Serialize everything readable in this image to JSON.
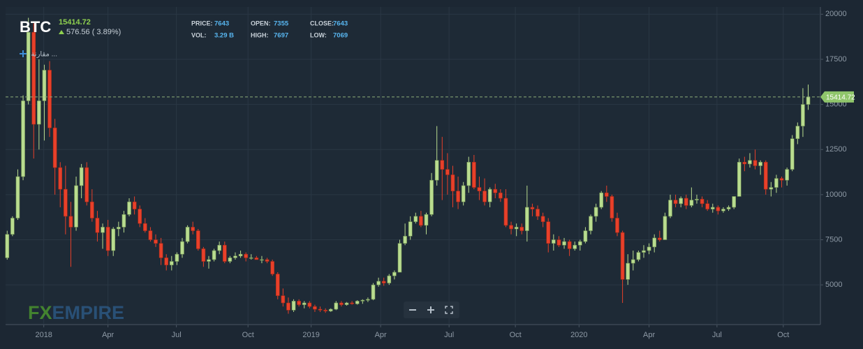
{
  "chart_data": {
    "type": "candlestick",
    "title": "BTC",
    "last_price": 15414.72,
    "change": "576.56 ( 3.89%)",
    "info": [
      {
        "label": "PRICE:",
        "value": 7643
      },
      {
        "label": "OPEN:",
        "value": 7355
      },
      {
        "label": "CLOSE:",
        "value": 7643
      },
      {
        "label": "VOL:",
        "value": "3.29 B"
      },
      {
        "label": "HIGH:",
        "value": 7697
      },
      {
        "label": "LOW:",
        "value": 7069
      }
    ],
    "compare_label": "مقارنة ...",
    "logo": [
      "FX",
      "EMPIRE"
    ],
    "up_color": "#b9dc8f",
    "down_color": "#e8402a",
    "grid": true,
    "ylim": [
      2800,
      20400
    ],
    "yticks": [
      5000,
      7500,
      10000,
      12500,
      15000,
      17500,
      20000
    ],
    "xlim": [
      -0.3,
      153.3
    ],
    "xticks": [
      {
        "value": 6.9,
        "label": "2018"
      },
      {
        "value": 19.0,
        "label": "Apr"
      },
      {
        "value": 31.9,
        "label": "Jul"
      },
      {
        "value": 45.4,
        "label": "Oct"
      },
      {
        "value": 57.3,
        "label": "2019"
      },
      {
        "value": 70.4,
        "label": "Apr"
      },
      {
        "value": 83.3,
        "label": "Jul"
      },
      {
        "value": 95.8,
        "label": "Oct"
      },
      {
        "value": 107.8,
        "label": "2020"
      },
      {
        "value": 121.0,
        "label": "Apr"
      },
      {
        "value": 133.8,
        "label": "Jul"
      },
      {
        "value": 146.3,
        "label": "Oct"
      }
    ],
    "ohlc": [
      [
        6500,
        8000,
        6400,
        7800
      ],
      [
        7800,
        8800,
        7700,
        8700
      ],
      [
        8700,
        11400,
        8600,
        11000
      ],
      [
        11000,
        15500,
        10800,
        15200
      ],
      [
        15200,
        19800,
        15000,
        19000
      ],
      [
        19000,
        19500,
        12000,
        13900
      ],
      [
        13900,
        17500,
        12500,
        15200
      ],
      [
        15200,
        17200,
        13000,
        16900
      ],
      [
        16900,
        17400,
        13200,
        13700
      ],
      [
        13700,
        14200,
        10000,
        11500
      ],
      [
        11500,
        11800,
        9300,
        10300
      ],
      [
        10300,
        11600,
        7800,
        8800
      ],
      [
        8800,
        9600,
        6000,
        8200
      ],
      [
        8200,
        11000,
        8000,
        10500
      ],
      [
        10500,
        11700,
        9800,
        11500
      ],
      [
        11500,
        11800,
        9400,
        9600
      ],
      [
        9600,
        10300,
        8500,
        8700
      ],
      [
        8700,
        9100,
        7400,
        7900
      ],
      [
        7900,
        8400,
        7000,
        8200
      ],
      [
        8200,
        8600,
        6600,
        6900
      ],
      [
        6900,
        8200,
        6600,
        8100
      ],
      [
        8100,
        8500,
        7700,
        8200
      ],
      [
        8200,
        9100,
        7900,
        8900
      ],
      [
        8900,
        9800,
        8800,
        9600
      ],
      [
        9600,
        9900,
        8900,
        9200
      ],
      [
        9200,
        9400,
        8200,
        8400
      ],
      [
        8400,
        8700,
        7900,
        8000
      ],
      [
        8000,
        8200,
        7400,
        7500
      ],
      [
        7500,
        7800,
        7100,
        7300
      ],
      [
        7300,
        7600,
        6100,
        6500
      ],
      [
        6500,
        6700,
        5800,
        6100
      ],
      [
        6100,
        6600,
        5800,
        6300
      ],
      [
        6300,
        6800,
        6100,
        6700
      ],
      [
        6700,
        7600,
        6500,
        7400
      ],
      [
        7400,
        8300,
        7300,
        8200
      ],
      [
        8200,
        8500,
        7800,
        8000
      ],
      [
        8000,
        8100,
        6900,
        7000
      ],
      [
        7000,
        7100,
        6000,
        6300
      ],
      [
        6300,
        6600,
        5900,
        6400
      ],
      [
        6400,
        7000,
        6300,
        6900
      ],
      [
        6900,
        7400,
        6700,
        7200
      ],
      [
        7200,
        7400,
        6200,
        6300
      ],
      [
        6300,
        6600,
        6200,
        6500
      ],
      [
        6500,
        6800,
        6400,
        6600
      ],
      [
        6600,
        6900,
        6500,
        6700
      ],
      [
        6700,
        6800,
        6300,
        6500
      ],
      [
        6500,
        6700,
        6400,
        6500
      ],
      [
        6500,
        6600,
        6400,
        6400
      ],
      [
        6400,
        6600,
        6200,
        6400
      ],
      [
        6400,
        6500,
        6200,
        6300
      ],
      [
        6300,
        6400,
        5500,
        5600
      ],
      [
        5600,
        5700,
        4200,
        4400
      ],
      [
        4400,
        4800,
        3800,
        4000
      ],
      [
        4000,
        4300,
        3400,
        3600
      ],
      [
        3600,
        4200,
        3500,
        4100
      ],
      [
        4100,
        4200,
        3800,
        3900
      ],
      [
        3900,
        4100,
        3700,
        4000
      ],
      [
        4000,
        4100,
        3700,
        3800
      ],
      [
        3800,
        3900,
        3500,
        3650
      ],
      [
        3650,
        3800,
        3500,
        3600
      ],
      [
        3600,
        3700,
        3450,
        3550
      ],
      [
        3550,
        3700,
        3500,
        3650
      ],
      [
        3650,
        4100,
        3600,
        4000
      ],
      [
        4000,
        4100,
        3800,
        3900
      ],
      [
        3900,
        4050,
        3850,
        4000
      ],
      [
        4000,
        4100,
        3900,
        3950
      ],
      [
        3950,
        4150,
        3900,
        4100
      ],
      [
        4100,
        4200,
        3950,
        4150
      ],
      [
        4150,
        4300,
        4050,
        4200
      ],
      [
        4200,
        5100,
        4150,
        5000
      ],
      [
        5000,
        5400,
        4900,
        5200
      ],
      [
        5200,
        5400,
        4950,
        5100
      ],
      [
        5100,
        5600,
        5000,
        5500
      ],
      [
        5500,
        5800,
        5300,
        5700
      ],
      [
        5700,
        7500,
        5700,
        7300
      ],
      [
        7300,
        8400,
        7200,
        7700
      ],
      [
        7700,
        8800,
        7500,
        8500
      ],
      [
        8500,
        9000,
        8400,
        8800
      ],
      [
        8800,
        9100,
        8200,
        8300
      ],
      [
        8300,
        9000,
        7800,
        8900
      ],
      [
        8900,
        11200,
        8800,
        10800
      ],
      [
        10800,
        13800,
        10500,
        11900
      ],
      [
        11900,
        13200,
        9700,
        11400
      ],
      [
        11400,
        12300,
        10000,
        11100
      ],
      [
        11100,
        11600,
        9300,
        10200
      ],
      [
        10200,
        11000,
        9200,
        9600
      ],
      [
        9600,
        10700,
        9400,
        10500
      ],
      [
        10500,
        12100,
        10100,
        11800
      ],
      [
        11800,
        12200,
        10300,
        10400
      ],
      [
        10400,
        11000,
        9700,
        10200
      ],
      [
        10200,
        10900,
        9400,
        9600
      ],
      [
        9600,
        10400,
        9300,
        10300
      ],
      [
        10300,
        10600,
        9800,
        10100
      ],
      [
        10100,
        10300,
        9600,
        9800
      ],
      [
        9800,
        10300,
        8200,
        8300
      ],
      [
        8300,
        8500,
        7800,
        8100
      ],
      [
        8100,
        8400,
        7700,
        8200
      ],
      [
        8200,
        8400,
        7800,
        8000
      ],
      [
        8000,
        10500,
        7400,
        9300
      ],
      [
        9300,
        9500,
        8800,
        9200
      ],
      [
        9200,
        9400,
        8600,
        8800
      ],
      [
        8800,
        9000,
        8200,
        8500
      ],
      [
        8500,
        8700,
        6800,
        7300
      ],
      [
        7300,
        7800,
        6900,
        7500
      ],
      [
        7500,
        7700,
        7100,
        7200
      ],
      [
        7200,
        7600,
        7000,
        7400
      ],
      [
        7400,
        7500,
        6600,
        7000
      ],
      [
        7000,
        7400,
        6900,
        7200
      ],
      [
        7200,
        7500,
        6900,
        7400
      ],
      [
        7400,
        8200,
        7300,
        8000
      ],
      [
        8000,
        8900,
        7800,
        8800
      ],
      [
        8800,
        9500,
        8500,
        9300
      ],
      [
        9300,
        10200,
        9200,
        10100
      ],
      [
        10100,
        10500,
        9600,
        9900
      ],
      [
        9900,
        10000,
        8500,
        8700
      ],
      [
        8700,
        9000,
        7700,
        7900
      ],
      [
        7900,
        8000,
        4000,
        5300
      ],
      [
        5300,
        6700,
        5000,
        6200
      ],
      [
        6200,
        6900,
        5800,
        6400
      ],
      [
        6400,
        6900,
        6300,
        6800
      ],
      [
        6800,
        7200,
        6500,
        6900
      ],
      [
        6900,
        7300,
        6700,
        7100
      ],
      [
        7100,
        7800,
        6800,
        7600
      ],
      [
        7600,
        8000,
        7400,
        7500
      ],
      [
        7500,
        9000,
        7500,
        8800
      ],
      [
        8800,
        10000,
        8700,
        9700
      ],
      [
        9700,
        10000,
        9300,
        9500
      ],
      [
        9500,
        9900,
        9300,
        9800
      ],
      [
        9800,
        10000,
        9200,
        9400
      ],
      [
        9400,
        10400,
        9300,
        9700
      ],
      [
        9700,
        10000,
        9500,
        9750
      ],
      [
        9750,
        9900,
        9300,
        9500
      ],
      [
        9500,
        9700,
        9100,
        9200
      ],
      [
        9200,
        9500,
        9000,
        9300
      ],
      [
        9300,
        9400,
        8900,
        9100
      ],
      [
        9100,
        9300,
        9000,
        9200
      ],
      [
        9200,
        9400,
        9100,
        9300
      ],
      [
        9300,
        9900,
        9200,
        9900
      ],
      [
        9900,
        12000,
        9900,
        11800
      ],
      [
        11800,
        12100,
        11300,
        11700
      ],
      [
        11700,
        12300,
        11500,
        11900
      ],
      [
        11900,
        12500,
        11400,
        11600
      ],
      [
        11600,
        11900,
        11100,
        11800
      ],
      [
        11800,
        11900,
        10000,
        10300
      ],
      [
        10300,
        10700,
        9900,
        10400
      ],
      [
        10400,
        11100,
        10100,
        10900
      ],
      [
        10900,
        11000,
        10400,
        10800
      ],
      [
        10800,
        11500,
        10500,
        11400
      ],
      [
        11400,
        13300,
        11300,
        13100
      ],
      [
        13100,
        14000,
        12800,
        13800
      ],
      [
        13800,
        15900,
        13200,
        15000
      ],
      [
        15000,
        16100,
        14700,
        15414.72
      ]
    ]
  }
}
